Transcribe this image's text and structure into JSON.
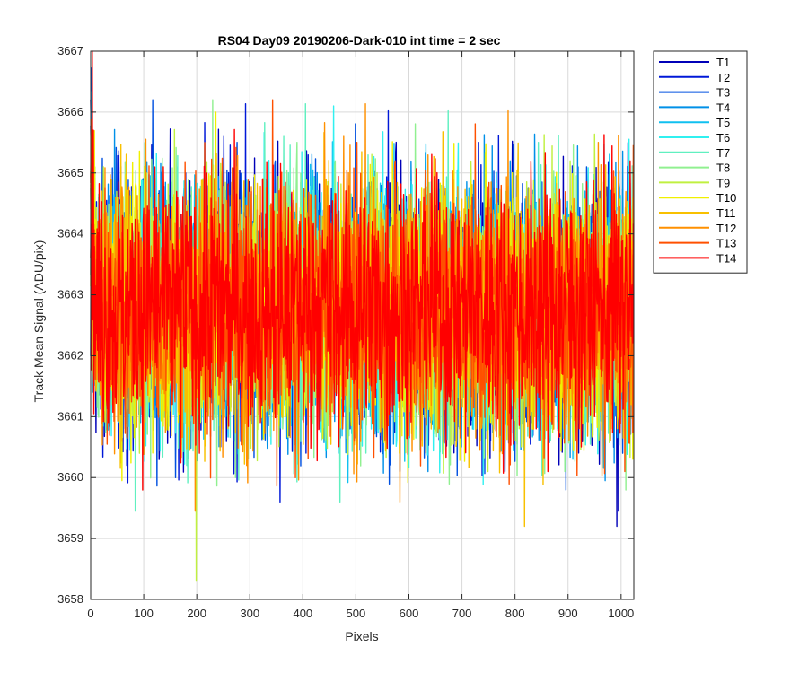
{
  "chart_data": {
    "type": "line",
    "title": "RS04 Day09 20190206-Dark-010 int time = 2 sec",
    "xlabel": "Pixels",
    "ylabel": "Track Mean Signal (ADU/pix)",
    "xlim": [
      0,
      1024
    ],
    "ylim": [
      3658,
      3667
    ],
    "xticks": [
      0,
      100,
      200,
      300,
      400,
      500,
      600,
      700,
      800,
      900,
      1000
    ],
    "yticks": [
      3658,
      3659,
      3660,
      3661,
      3662,
      3663,
      3664,
      3665,
      3666,
      3667
    ],
    "grid": true,
    "legend_position": "outside-top-right",
    "mean_level": 3662.8,
    "noise_spread": [
      3660,
      3665.5
    ],
    "num_points": 1024,
    "series": [
      {
        "name": "T1",
        "color": "#0000b8"
      },
      {
        "name": "T2",
        "color": "#0018d8"
      },
      {
        "name": "T3",
        "color": "#0050e0"
      },
      {
        "name": "T4",
        "color": "#0090e8"
      },
      {
        "name": "T5",
        "color": "#10c0f0"
      },
      {
        "name": "T6",
        "color": "#30f0f0"
      },
      {
        "name": "T7",
        "color": "#60f0c0"
      },
      {
        "name": "T8",
        "color": "#90f090"
      },
      {
        "name": "T9",
        "color": "#c0f040"
      },
      {
        "name": "T10",
        "color": "#f0f000"
      },
      {
        "name": "T11",
        "color": "#f8c000"
      },
      {
        "name": "T12",
        "color": "#ff9000"
      },
      {
        "name": "T13",
        "color": "#ff5000"
      },
      {
        "name": "T14",
        "color": "#ff0000"
      }
    ],
    "notable_points": [
      {
        "series": "T14",
        "x": 3,
        "y": 3667
      },
      {
        "series": "T9",
        "x": 199,
        "y": 3658.3
      },
      {
        "series": "T11",
        "x": 818,
        "y": 3659.2
      },
      {
        "series": "T1",
        "x": 992,
        "y": 3659.2
      },
      {
        "series": "T6",
        "x": 458,
        "y": 3666.1
      },
      {
        "series": "T10",
        "x": 236,
        "y": 3666.0
      }
    ]
  }
}
